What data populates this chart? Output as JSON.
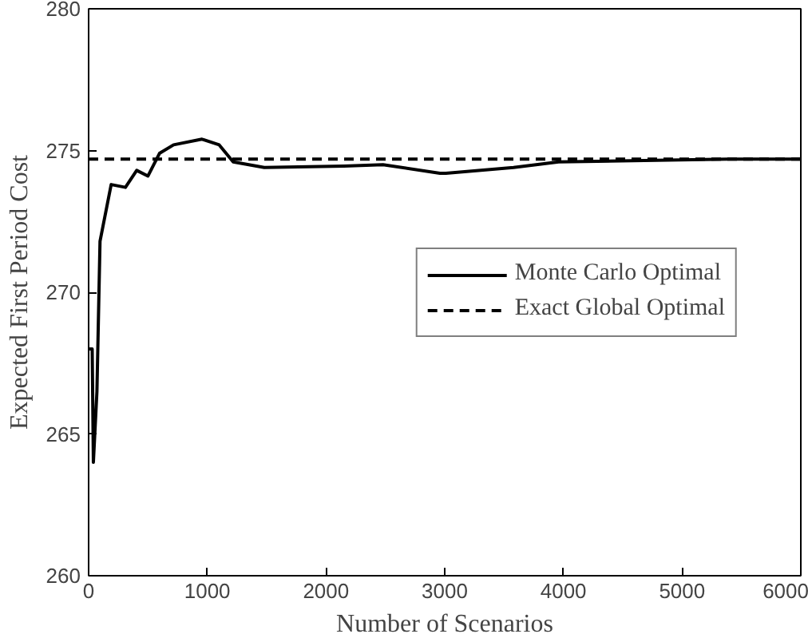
{
  "chart_data": {
    "type": "line",
    "xlabel": "Number of Scenarios",
    "ylabel": "Expected First Period Cost",
    "xlim": [
      0,
      6000
    ],
    "ylim": [
      260,
      280
    ],
    "xticks": [
      0,
      1000,
      2000,
      3000,
      4000,
      5000,
      6000
    ],
    "yticks": [
      260,
      265,
      270,
      275,
      280
    ],
    "grid": false,
    "legend": "right",
    "series": [
      {
        "name": "Monte Carlo Optimal",
        "color": "#000000",
        "line_style": "solid",
        "x": [
          0,
          30,
          40,
          70,
          96,
          190,
          310,
          405,
          500,
          597,
          716,
          955,
          1100,
          1218,
          1480,
          2150,
          2480,
          2960,
          3010,
          3580,
          3960,
          5390,
          6000
        ],
        "values": [
          268,
          268,
          264,
          266.5,
          271.8,
          273.8,
          273.7,
          274.3,
          274.1,
          274.9,
          275.2,
          275.4,
          275.2,
          274.6,
          274.4,
          274.45,
          274.5,
          274.2,
          274.2,
          274.4,
          274.6,
          274.7,
          274.7
        ]
      },
      {
        "name": "Exact Global Optimal",
        "color": "#000000",
        "line_style": "dashed",
        "x": [
          0,
          6000
        ],
        "values": [
          274.7,
          274.7
        ]
      }
    ]
  }
}
